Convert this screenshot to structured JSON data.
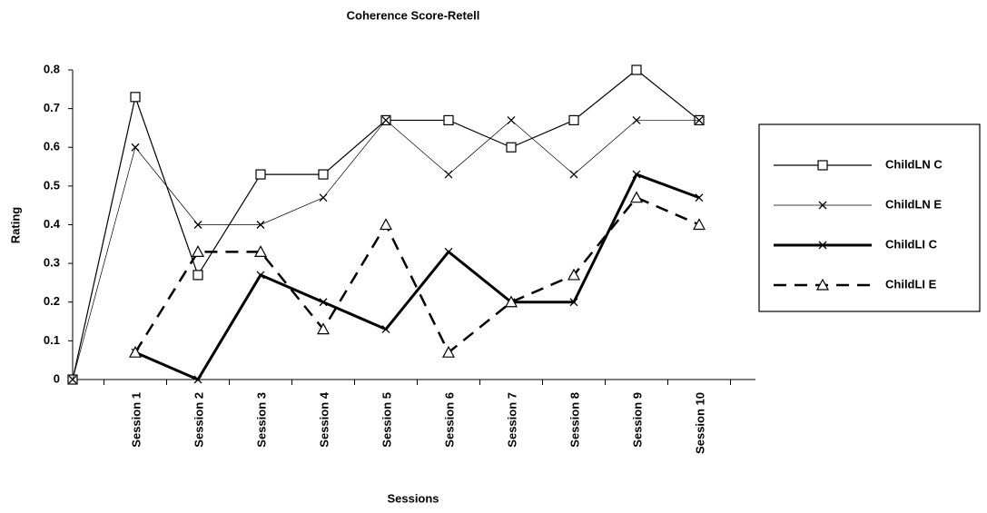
{
  "chart_data": {
    "type": "line",
    "title": "Coherence Score-Retell",
    "x_label": "Sessions",
    "y_label": "Rating",
    "categories": [
      null,
      "Session 1",
      "Session 2",
      "Session 3",
      "Session 4",
      "Session 5",
      "Session 6",
      "Session 7",
      "Session 8",
      "Session 9",
      "Session 10"
    ],
    "series": [
      {
        "name": "ChildLN C",
        "color": "#000000",
        "marker": "square",
        "line_width": 1.2,
        "dashed": false,
        "values": [
          0,
          0.73,
          0.27,
          0.53,
          0.53,
          0.67,
          0.67,
          0.6,
          0.67,
          0.8,
          0.67
        ]
      },
      {
        "name": "ChildLN E",
        "color": "#000000",
        "marker": "x",
        "line_width": 0.7,
        "dashed": false,
        "values": [
          0,
          0.6,
          0.4,
          0.4,
          0.47,
          0.67,
          0.53,
          0.67,
          0.53,
          0.67,
          0.67
        ]
      },
      {
        "name": "ChildLI C",
        "color": "#000000",
        "marker": "x",
        "line_width": 3,
        "dashed": false,
        "values": [
          null,
          0.07,
          0,
          0.27,
          0.2,
          0.13,
          0.33,
          0.2,
          0.2,
          0.53,
          0.47
        ]
      },
      {
        "name": "ChildLI E",
        "color": "#000000",
        "marker": "triangle",
        "line_width": 2.5,
        "dashed": true,
        "values": [
          null,
          0.07,
          0.33,
          0.33,
          0.13,
          0.4,
          0.07,
          0.2,
          0.27,
          0.47,
          0.4
        ]
      }
    ],
    "ylim": [
      0,
      0.8
    ],
    "yticks": [
      0,
      0.1,
      0.2,
      0.3,
      0.4,
      0.5,
      0.6,
      0.7,
      0.8
    ],
    "legend": "right"
  }
}
